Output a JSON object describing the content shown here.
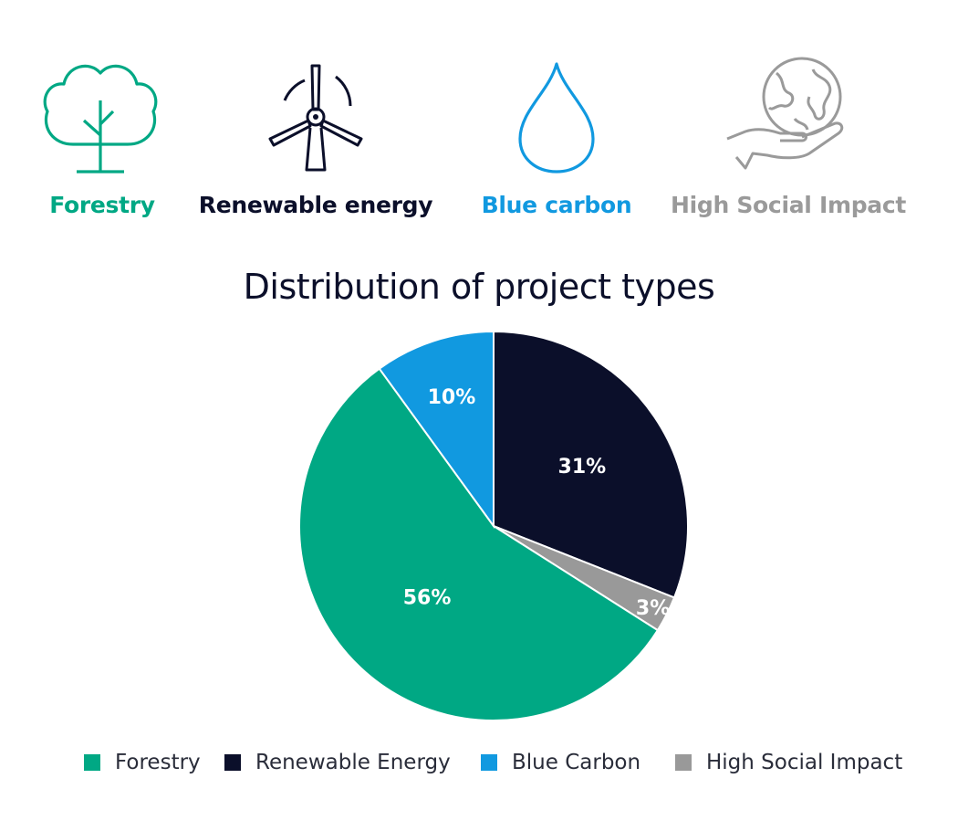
{
  "categories_header": [
    {
      "label": "Forestry",
      "color": "#00a884",
      "icon": "tree-icon"
    },
    {
      "label": "Renewable energy",
      "color": "#0b0f2a",
      "icon": "wind-turbine-icon"
    },
    {
      "label": "Blue carbon",
      "color": "#1199e0",
      "icon": "water-drop-icon"
    },
    {
      "label": "High Social Impact",
      "color": "#9a9a9a",
      "icon": "globe-in-hand-icon"
    }
  ],
  "chart_data": {
    "type": "pie",
    "title": "Distribution of project types",
    "slices": [
      {
        "name": "Renewable Energy",
        "value": 31,
        "label": "31%",
        "color": "#0b0f2a"
      },
      {
        "name": "High Social Impact",
        "value": 3,
        "label": "3%",
        "color": "#999999"
      },
      {
        "name": "Forestry",
        "value": 56,
        "label": "56%",
        "color": "#00a884"
      },
      {
        "name": "Blue Carbon",
        "value": 10,
        "label": "10%",
        "color": "#1199e0"
      }
    ],
    "legend": [
      {
        "name": "Forestry",
        "color": "#00a884"
      },
      {
        "name": "Renewable Energy",
        "color": "#0b0f2a"
      },
      {
        "name": "Blue Carbon",
        "color": "#1199e0"
      },
      {
        "name": "High Social Impact",
        "color": "#999999"
      }
    ],
    "legend_position": "bottom"
  }
}
